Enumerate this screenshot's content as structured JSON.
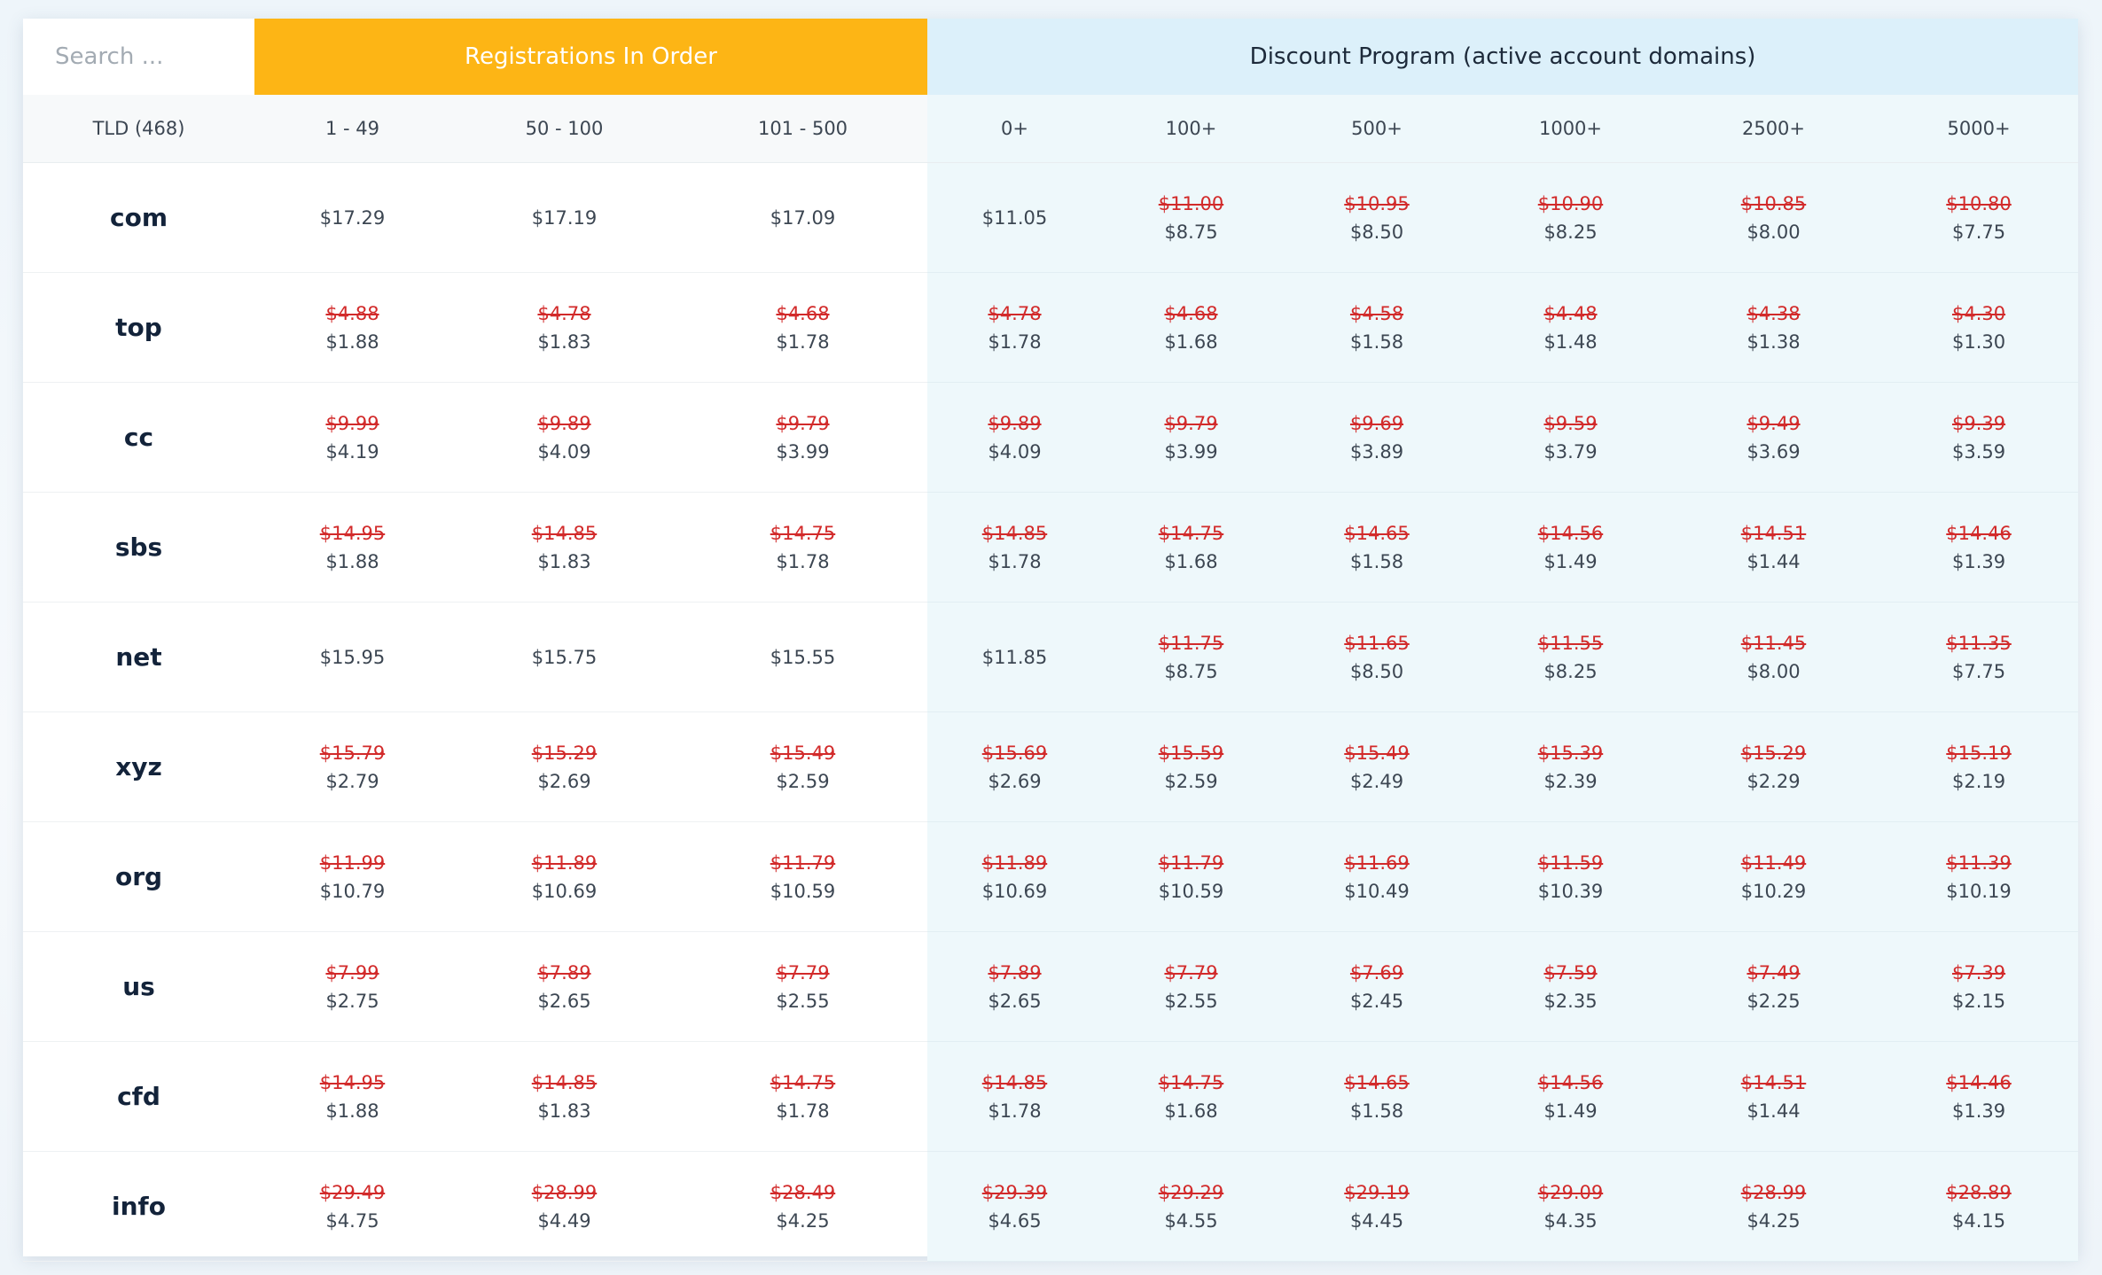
{
  "search_placeholder": "Search ...",
  "groups": {
    "registrations": "Registrations In Order",
    "discount": "Discount Program (active account domains)"
  },
  "columns": [
    "TLD (468)",
    "1 - 49",
    "50 - 100",
    "101 - 500",
    "0+",
    "100+",
    "500+",
    "1000+",
    "2500+",
    "5000+"
  ],
  "rows": [
    {
      "tld": "com",
      "prices": [
        [
          "$17.29"
        ],
        [
          "$17.19"
        ],
        [
          "$17.09"
        ],
        [
          "$11.05"
        ],
        [
          "$11.00",
          "$8.75"
        ],
        [
          "$10.95",
          "$8.50"
        ],
        [
          "$10.90",
          "$8.25"
        ],
        [
          "$10.85",
          "$8.00"
        ],
        [
          "$10.80",
          "$7.75"
        ]
      ]
    },
    {
      "tld": "top",
      "prices": [
        [
          "$4.88",
          "$1.88"
        ],
        [
          "$4.78",
          "$1.83"
        ],
        [
          "$4.68",
          "$1.78"
        ],
        [
          "$4.78",
          "$1.78"
        ],
        [
          "$4.68",
          "$1.68"
        ],
        [
          "$4.58",
          "$1.58"
        ],
        [
          "$4.48",
          "$1.48"
        ],
        [
          "$4.38",
          "$1.38"
        ],
        [
          "$4.30",
          "$1.30"
        ]
      ]
    },
    {
      "tld": "cc",
      "prices": [
        [
          "$9.99",
          "$4.19"
        ],
        [
          "$9.89",
          "$4.09"
        ],
        [
          "$9.79",
          "$3.99"
        ],
        [
          "$9.89",
          "$4.09"
        ],
        [
          "$9.79",
          "$3.99"
        ],
        [
          "$9.69",
          "$3.89"
        ],
        [
          "$9.59",
          "$3.79"
        ],
        [
          "$9.49",
          "$3.69"
        ],
        [
          "$9.39",
          "$3.59"
        ]
      ]
    },
    {
      "tld": "sbs",
      "prices": [
        [
          "$14.95",
          "$1.88"
        ],
        [
          "$14.85",
          "$1.83"
        ],
        [
          "$14.75",
          "$1.78"
        ],
        [
          "$14.85",
          "$1.78"
        ],
        [
          "$14.75",
          "$1.68"
        ],
        [
          "$14.65",
          "$1.58"
        ],
        [
          "$14.56",
          "$1.49"
        ],
        [
          "$14.51",
          "$1.44"
        ],
        [
          "$14.46",
          "$1.39"
        ]
      ]
    },
    {
      "tld": "net",
      "prices": [
        [
          "$15.95"
        ],
        [
          "$15.75"
        ],
        [
          "$15.55"
        ],
        [
          "$11.85"
        ],
        [
          "$11.75",
          "$8.75"
        ],
        [
          "$11.65",
          "$8.50"
        ],
        [
          "$11.55",
          "$8.25"
        ],
        [
          "$11.45",
          "$8.00"
        ],
        [
          "$11.35",
          "$7.75"
        ]
      ]
    },
    {
      "tld": "xyz",
      "prices": [
        [
          "$15.79",
          "$2.79"
        ],
        [
          "$15.29",
          "$2.69"
        ],
        [
          "$15.49",
          "$2.59"
        ],
        [
          "$15.69",
          "$2.69"
        ],
        [
          "$15.59",
          "$2.59"
        ],
        [
          "$15.49",
          "$2.49"
        ],
        [
          "$15.39",
          "$2.39"
        ],
        [
          "$15.29",
          "$2.29"
        ],
        [
          "$15.19",
          "$2.19"
        ]
      ]
    },
    {
      "tld": "org",
      "prices": [
        [
          "$11.99",
          "$10.79"
        ],
        [
          "$11.89",
          "$10.69"
        ],
        [
          "$11.79",
          "$10.59"
        ],
        [
          "$11.89",
          "$10.69"
        ],
        [
          "$11.79",
          "$10.59"
        ],
        [
          "$11.69",
          "$10.49"
        ],
        [
          "$11.59",
          "$10.39"
        ],
        [
          "$11.49",
          "$10.29"
        ],
        [
          "$11.39",
          "$10.19"
        ]
      ]
    },
    {
      "tld": "us",
      "prices": [
        [
          "$7.99",
          "$2.75"
        ],
        [
          "$7.89",
          "$2.65"
        ],
        [
          "$7.79",
          "$2.55"
        ],
        [
          "$7.89",
          "$2.65"
        ],
        [
          "$7.79",
          "$2.55"
        ],
        [
          "$7.69",
          "$2.45"
        ],
        [
          "$7.59",
          "$2.35"
        ],
        [
          "$7.49",
          "$2.25"
        ],
        [
          "$7.39",
          "$2.15"
        ]
      ]
    },
    {
      "tld": "cfd",
      "prices": [
        [
          "$14.95",
          "$1.88"
        ],
        [
          "$14.85",
          "$1.83"
        ],
        [
          "$14.75",
          "$1.78"
        ],
        [
          "$14.85",
          "$1.78"
        ],
        [
          "$14.75",
          "$1.68"
        ],
        [
          "$14.65",
          "$1.58"
        ],
        [
          "$14.56",
          "$1.49"
        ],
        [
          "$14.51",
          "$1.44"
        ],
        [
          "$14.46",
          "$1.39"
        ]
      ]
    },
    {
      "tld": "info",
      "prices": [
        [
          "$29.49",
          "$4.75"
        ],
        [
          "$28.99",
          "$4.49"
        ],
        [
          "$28.49",
          "$4.25"
        ],
        [
          "$29.39",
          "$4.65"
        ],
        [
          "$29.29",
          "$4.55"
        ],
        [
          "$29.19",
          "$4.45"
        ],
        [
          "$29.09",
          "$4.35"
        ],
        [
          "$28.99",
          "$4.25"
        ],
        [
          "$28.89",
          "$4.15"
        ]
      ]
    }
  ]
}
